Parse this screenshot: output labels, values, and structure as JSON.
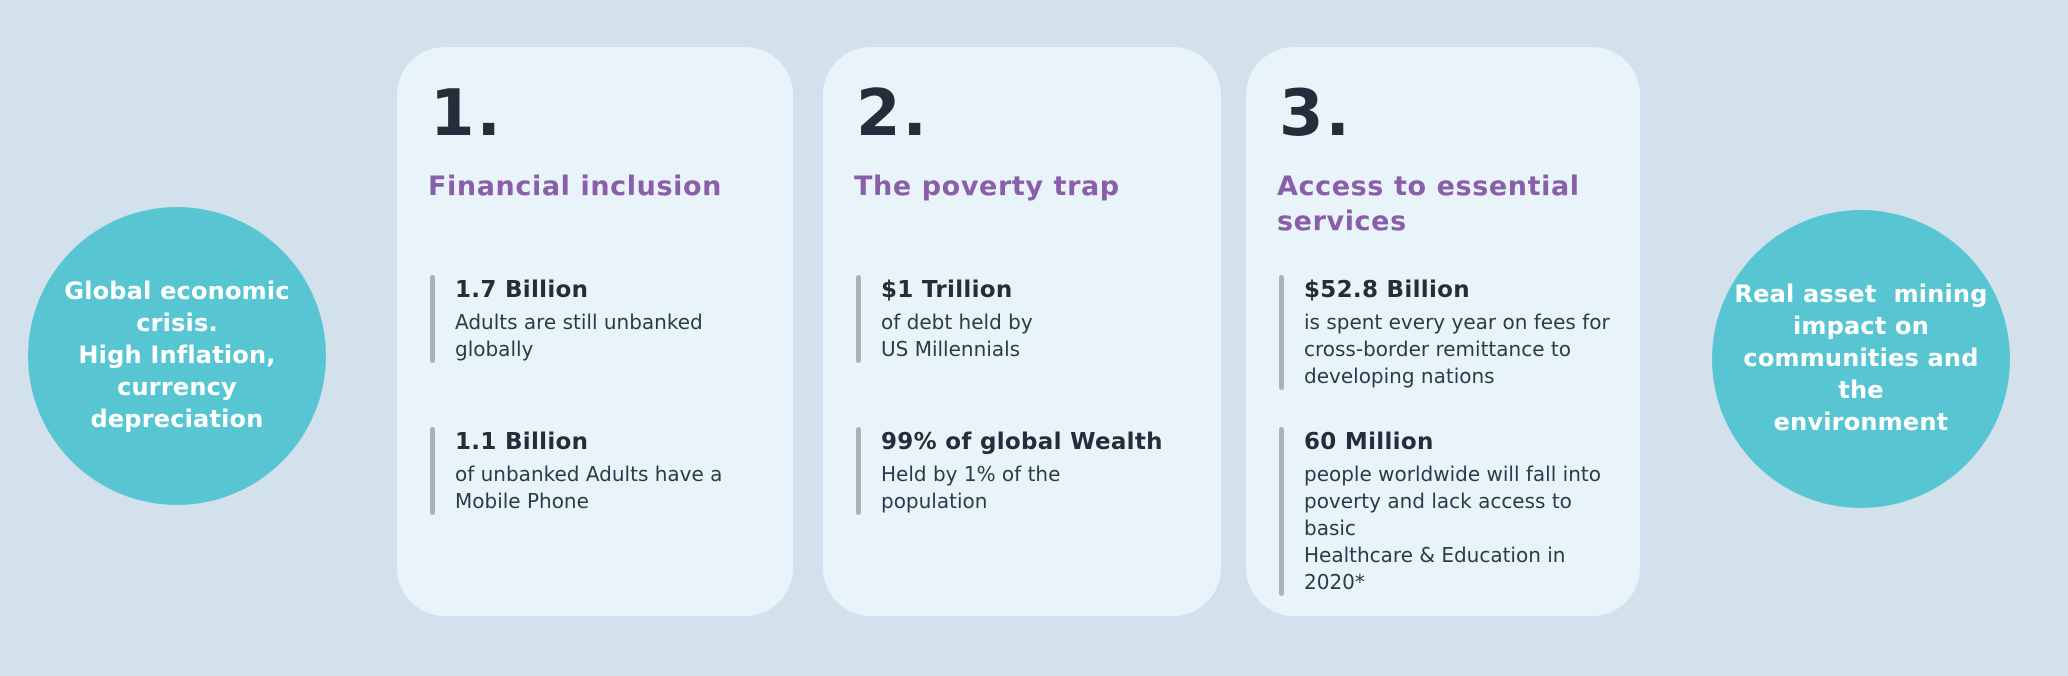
{
  "colors": {
    "background": "#d2e1ec",
    "card_background": "#e9f4fa",
    "circle_teal": "#58c6d2",
    "heading_purple": "#8a5fa9",
    "number_dark": "#232e3a",
    "body_text": "#2b3b49",
    "stat_bar_gray": "#a9b2ba",
    "circle_text": "#ffffff"
  },
  "left_circle": {
    "text": "Global economic\ncrisis.\nHigh Inflation,\ncurrency\ndepreciation"
  },
  "right_circle": {
    "text": "Real asset  mining\nimpact on\ncommunities and the\nenvironment"
  },
  "cards": [
    {
      "number": "1.",
      "title": "Financial inclusion",
      "stats": [
        {
          "value": "1.7 Billion",
          "description": "Adults are still unbanked\nglobally"
        },
        {
          "value": "1.1 Billion",
          "description": "of unbanked Adults have a\nMobile Phone"
        }
      ]
    },
    {
      "number": "2.",
      "title": "The poverty trap",
      "stats": [
        {
          "value": "$1 Trillion",
          "description": "of debt held by\nUS Millennials"
        },
        {
          "value": "99% of global Wealth",
          "description": "Held by 1% of the\npopulation"
        }
      ]
    },
    {
      "number": "3.",
      "title": "Access to essential\nservices",
      "stats": [
        {
          "value": "$52.8 Billion",
          "description": "is spent every year on fees for\ncross-border remittance to\ndeveloping nations"
        },
        {
          "value": "60 Million",
          "description": "people worldwide will fall into\npoverty and lack access to basic\nHealthcare & Education in 2020*"
        }
      ]
    }
  ]
}
